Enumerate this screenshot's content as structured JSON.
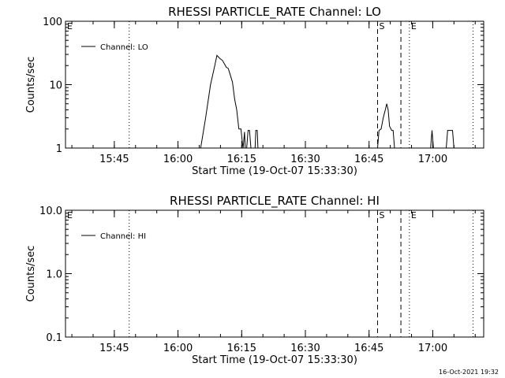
{
  "footer": {
    "timestamp": "16-Oct-2021 19:32"
  },
  "chart_data": [
    {
      "type": "line",
      "title": "RHESSI PARTICLE_RATE Channel: LO",
      "xlabel": "Start Time (19-Oct-07 15:33:30)",
      "ylabel": "Counts/sec",
      "yscale": "log",
      "ylim": [
        1,
        100
      ],
      "xlim": [
        "15:33:30",
        "17:12:00"
      ],
      "x_ticks": [
        "15:45",
        "16:00",
        "16:15",
        "16:30",
        "16:45",
        "17:00"
      ],
      "y_ticks": [
        "1",
        "10",
        "100"
      ],
      "legend": {
        "label": "Channel: LO",
        "position": "top-left"
      },
      "markers": [
        {
          "label": "E",
          "time": "15:33:30",
          "style": "solid"
        },
        {
          "label": "",
          "time": "15:48:30",
          "style": "dotted"
        },
        {
          "label": "S",
          "time": "16:47:00",
          "style": "dashed"
        },
        {
          "label": "",
          "time": "16:52:30",
          "style": "dashed"
        },
        {
          "label": "E",
          "time": "16:54:30",
          "style": "dotted"
        },
        {
          "label": "",
          "time": "17:09:30",
          "style": "dotted"
        }
      ],
      "series": [
        {
          "points": [
            [
              "16:05:20",
              1
            ],
            [
              "16:06:30",
              3
            ],
            [
              "16:07:40",
              10
            ],
            [
              "16:08:40",
              20
            ],
            [
              "16:09:10",
              29
            ],
            [
              "16:09:50",
              26
            ],
            [
              "16:10:30",
              24
            ],
            [
              "16:11:20",
              19
            ],
            [
              "16:11:50",
              18
            ],
            [
              "16:12:20",
              14
            ],
            [
              "16:12:50",
              11
            ],
            [
              "16:13:20",
              6
            ],
            [
              "16:13:50",
              4
            ],
            [
              "16:14:20",
              2
            ],
            [
              "16:14:50",
              2
            ],
            [
              "16:15:10",
              1.2
            ],
            [
              "16:15:20",
              1
            ],
            [
              "16:15:40",
              1.8
            ],
            [
              "16:15:50",
              1
            ],
            [
              "16:16:10",
              1
            ],
            [
              "16:16:30",
              1.9
            ],
            [
              "16:16:50",
              1.9
            ],
            [
              "16:17:10",
              1
            ],
            [
              "16:18:10",
              1
            ],
            [
              "16:18:20",
              1.9
            ],
            [
              "16:18:40",
              1.9
            ],
            [
              "16:18:50",
              1
            ]
          ]
        },
        {
          "points": [
            [
              "16:47:00",
              1
            ],
            [
              "16:47:20",
              1.9
            ],
            [
              "16:47:50",
              2
            ],
            [
              "16:48:20",
              3
            ],
            [
              "16:48:50",
              4
            ],
            [
              "16:49:10",
              5
            ],
            [
              "16:49:30",
              4
            ],
            [
              "16:49:50",
              2.2
            ],
            [
              "16:50:20",
              1.9
            ],
            [
              "16:50:40",
              1.9
            ],
            [
              "16:51:00",
              1
            ]
          ]
        },
        {
          "points": [
            [
              "16:59:30",
              1
            ],
            [
              "16:59:50",
              1.9
            ],
            [
              "17:00:10",
              1
            ]
          ]
        },
        {
          "points": [
            [
              "17:03:10",
              1
            ],
            [
              "17:03:30",
              1.9
            ],
            [
              "17:04:40",
              1.9
            ],
            [
              "17:05:00",
              1
            ]
          ]
        }
      ]
    },
    {
      "type": "line",
      "title": "RHESSI PARTICLE_RATE Channel: HI",
      "xlabel": "Start Time (19-Oct-07 15:33:30)",
      "ylabel": "Counts/sec",
      "yscale": "log",
      "ylim": [
        0.1,
        10
      ],
      "xlim": [
        "15:33:30",
        "17:12:00"
      ],
      "x_ticks": [
        "15:45",
        "16:00",
        "16:15",
        "16:30",
        "16:45",
        "17:00"
      ],
      "y_ticks": [
        "0.1",
        "1.0",
        "10.0"
      ],
      "legend": {
        "label": "Channel: HI",
        "position": "top-left"
      },
      "markers": [
        {
          "label": "E",
          "time": "15:33:30",
          "style": "solid"
        },
        {
          "label": "",
          "time": "15:48:30",
          "style": "dotted"
        },
        {
          "label": "S",
          "time": "16:47:00",
          "style": "dashed"
        },
        {
          "label": "",
          "time": "16:52:30",
          "style": "dashed"
        },
        {
          "label": "E",
          "time": "16:54:30",
          "style": "dotted"
        },
        {
          "label": "",
          "time": "17:09:30",
          "style": "dotted"
        }
      ],
      "series": [
        {
          "points": []
        }
      ]
    }
  ]
}
